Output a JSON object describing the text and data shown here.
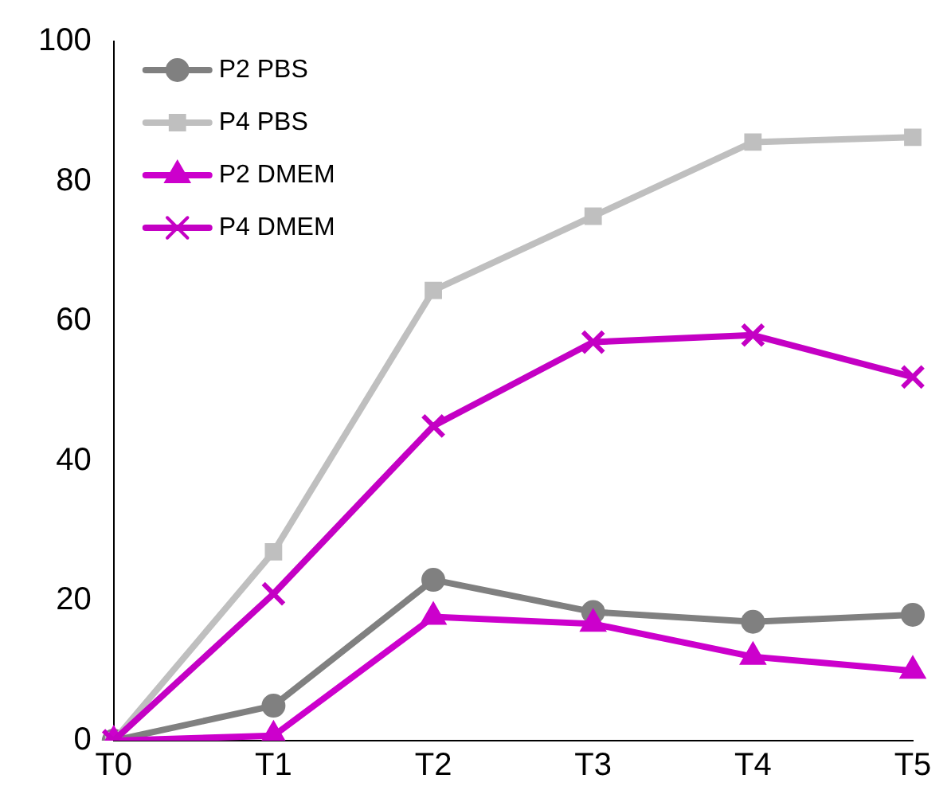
{
  "chart_data": {
    "type": "line",
    "categories": [
      "T0",
      "T1",
      "T2",
      "T3",
      "T4",
      "T5"
    ],
    "ylim": [
      0,
      100
    ],
    "yticks": [
      0,
      20,
      40,
      60,
      80,
      100
    ],
    "grid": false,
    "legend": "top left",
    "series": [
      {
        "name": "P2 PBS",
        "color": "#808080",
        "marker": "circle",
        "values": [
          0,
          5,
          23,
          18.4,
          17,
          18
        ]
      },
      {
        "name": "P4 PBS",
        "color": "#bfbfbf",
        "marker": "square",
        "values": [
          0,
          27,
          64.4,
          75,
          85.6,
          86.3
        ]
      },
      {
        "name": "P2 DMEM",
        "color": "#cc00cc",
        "marker": "triangle",
        "values": [
          0,
          0.7,
          17.7,
          16.7,
          12,
          10
        ]
      },
      {
        "name": "P4 DMEM",
        "color": "#c400c4",
        "marker": "cross",
        "values": [
          0,
          21,
          45,
          57,
          58,
          52
        ]
      }
    ]
  }
}
